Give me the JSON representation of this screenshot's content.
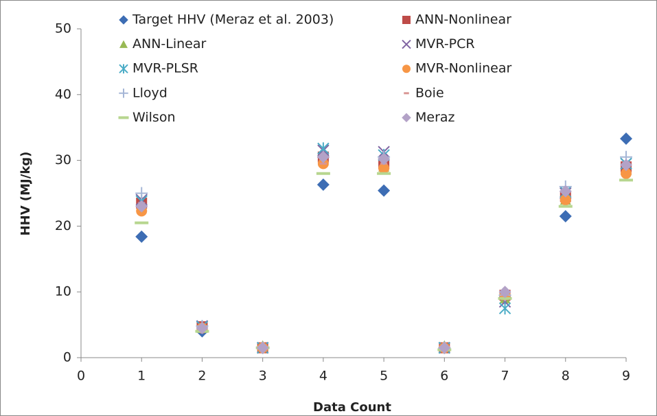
{
  "chart_data": {
    "type": "scatter",
    "xlabel": "Data Count",
    "ylabel": "HHV (MJ/kg)",
    "x": [
      1,
      2,
      3,
      4,
      5,
      6,
      7,
      8,
      9
    ],
    "xlim": [
      0,
      9
    ],
    "xticks": [
      0,
      1,
      2,
      3,
      4,
      5,
      6,
      7,
      8,
      9
    ],
    "ylim": [
      0,
      50
    ],
    "yticks": [
      0,
      10,
      20,
      30,
      40,
      50
    ],
    "grid": false,
    "legend": "top",
    "series": [
      {
        "name": "Target HHV (Meraz et al. 2003)",
        "color": "#3d6db4",
        "marker": "diamond",
        "values": [
          18.4,
          4,
          1.5,
          26.3,
          25.4,
          1.5,
          9,
          21.5,
          33.3
        ]
      },
      {
        "name": "ANN-Nonlinear",
        "color": "#be4b48",
        "marker": "square",
        "values": [
          23.5,
          4.7,
          1.5,
          30.5,
          29.5,
          1.5,
          9.5,
          24.5,
          29
        ]
      },
      {
        "name": "ANN-Linear",
        "color": "#98b954",
        "marker": "triangle",
        "values": [
          23,
          4.5,
          1.8,
          30,
          29,
          1.8,
          9,
          24,
          28.5
        ]
      },
      {
        "name": "MVR-PCR",
        "color": "#8064a2",
        "marker": "x",
        "values": [
          24,
          4.8,
          1.5,
          31.5,
          31.3,
          1.5,
          8.5,
          25,
          29.5
        ]
      },
      {
        "name": "MVR-PLSR",
        "color": "#4bacc6",
        "marker": "asterisk",
        "values": [
          23.8,
          4.7,
          1.5,
          31.8,
          30.8,
          1.5,
          7.5,
          25.2,
          29.5
        ]
      },
      {
        "name": "MVR-Nonlinear",
        "color": "#f79646",
        "marker": "circle",
        "values": [
          22.3,
          4.5,
          1.5,
          29.5,
          28.8,
          1.5,
          9.5,
          24,
          28
        ]
      },
      {
        "name": "Lloyd",
        "color": "#a5b6d6",
        "marker": "plus",
        "values": [
          25,
          4.8,
          1.5,
          30.5,
          30.5,
          1.5,
          9.5,
          26,
          30.5
        ]
      },
      {
        "name": "Boie",
        "color": "#d99694",
        "marker": "dash",
        "values": [
          23.5,
          4.5,
          1.5,
          29.5,
          29.5,
          1.5,
          9.5,
          25,
          29
        ]
      },
      {
        "name": "Wilson",
        "color": "#b7d68f",
        "marker": "longdash",
        "values": [
          20.5,
          4,
          1.5,
          28,
          28,
          1.2,
          9,
          23,
          27
        ]
      },
      {
        "name": "Meraz",
        "color": "#b3a2c7",
        "marker": "diamond",
        "values": [
          23,
          4.5,
          1.5,
          30.5,
          30.2,
          1.5,
          10,
          25.3,
          29.3
        ]
      }
    ]
  }
}
